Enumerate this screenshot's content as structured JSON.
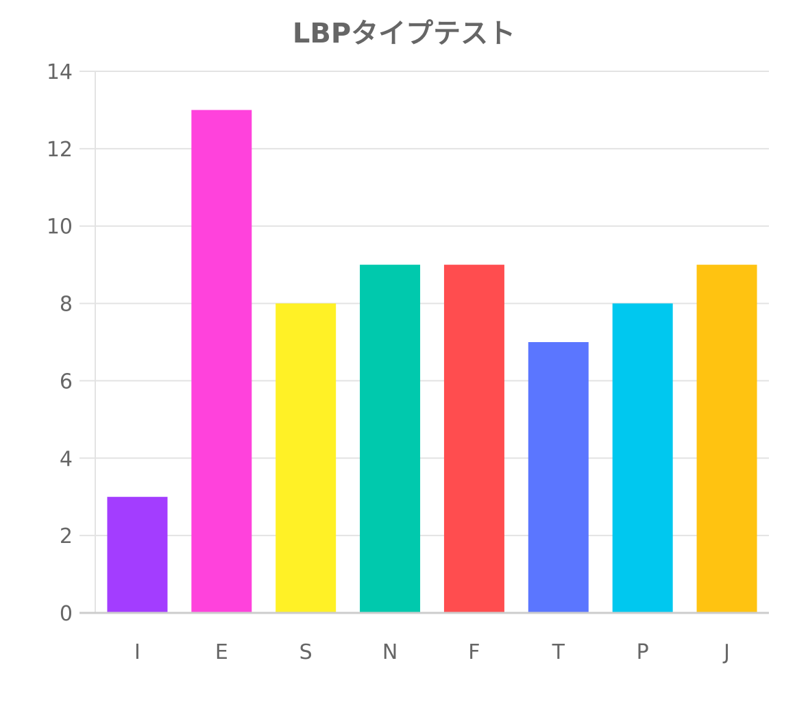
{
  "chart_data": {
    "type": "bar",
    "title": "LBPタイプテスト",
    "categories": [
      "I",
      "E",
      "S",
      "N",
      "F",
      "T",
      "P",
      "J"
    ],
    "values": [
      3,
      13,
      8,
      9,
      9,
      7,
      8,
      9
    ],
    "colors": [
      "#A33DFF",
      "#FF42DC",
      "#FFF126",
      "#00C9AD",
      "#FF4D4F",
      "#5B76FF",
      "#00C8EF",
      "#FFC311"
    ],
    "ylim": [
      0,
      14
    ],
    "yticks": [
      "0",
      "2",
      "4",
      "6",
      "8",
      "10",
      "12",
      "14"
    ],
    "xlabel": "",
    "ylabel": "",
    "grid": true,
    "legend": "none"
  }
}
